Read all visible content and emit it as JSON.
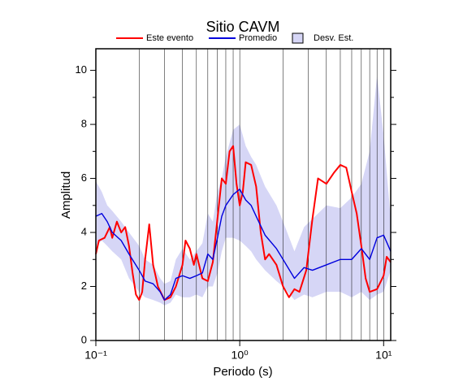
{
  "chart_data": {
    "type": "line",
    "title": "Sitio CAVM",
    "xlabel": "Periodo (s)",
    "ylabel": "Amplitud",
    "xscale": "log",
    "xlim": [
      0.1,
      11.2
    ],
    "ylim": [
      0,
      10.8
    ],
    "xticks": [
      {
        "value": 0.1,
        "label": "10⁻¹"
      },
      {
        "value": 1,
        "label": "10⁰"
      },
      {
        "value": 10,
        "label": "10¹"
      }
    ],
    "xgrid": [
      0.2,
      0.3,
      0.4,
      0.5,
      0.6,
      0.7,
      0.8,
      0.9,
      1,
      2,
      3,
      4,
      5,
      6,
      7,
      8,
      9,
      10
    ],
    "yticks": [
      0,
      2,
      4,
      6,
      8,
      10
    ],
    "yminorticks": [
      1,
      3,
      5,
      7,
      9
    ],
    "series": [
      {
        "name": "Este evento",
        "color": "#ff0000",
        "x": [
          0.1,
          0.105,
          0.115,
          0.125,
          0.13,
          0.14,
          0.15,
          0.16,
          0.17,
          0.18,
          0.19,
          0.2,
          0.21,
          0.22,
          0.235,
          0.25,
          0.27,
          0.3,
          0.33,
          0.36,
          0.4,
          0.42,
          0.45,
          0.48,
          0.5,
          0.55,
          0.6,
          0.65,
          0.7,
          0.75,
          0.8,
          0.85,
          0.9,
          0.95,
          1.0,
          1.05,
          1.1,
          1.2,
          1.3,
          1.4,
          1.5,
          1.6,
          1.8,
          2.0,
          2.2,
          2.4,
          2.6,
          2.9,
          3.2,
          3.5,
          4.0,
          4.5,
          5.0,
          5.5,
          6,
          6.5,
          7,
          7.5,
          8,
          9,
          10,
          10.5,
          11.2
        ],
        "values": [
          3.2,
          3.7,
          3.8,
          4.2,
          3.8,
          4.4,
          4.0,
          4.2,
          3.5,
          2.5,
          1.7,
          1.5,
          1.8,
          3.0,
          4.3,
          2.8,
          2.0,
          1.5,
          1.6,
          2.0,
          2.8,
          3.7,
          3.4,
          2.8,
          3.2,
          2.3,
          2.2,
          2.9,
          4.5,
          6.0,
          5.8,
          7.0,
          7.2,
          5.8,
          5.0,
          5.5,
          6.6,
          6.5,
          5.7,
          4.0,
          3.0,
          3.2,
          2.8,
          2.0,
          1.6,
          1.9,
          1.8,
          2.6,
          4.5,
          6.0,
          5.8,
          6.2,
          6.5,
          6.4,
          5.5,
          4.7,
          3.5,
          2.3,
          1.8,
          1.9,
          2.4,
          3.1,
          2.9
        ]
      },
      {
        "name": "Promedio",
        "color": "#0000dd",
        "x": [
          0.1,
          0.11,
          0.12,
          0.13,
          0.15,
          0.17,
          0.2,
          0.22,
          0.25,
          0.28,
          0.3,
          0.33,
          0.36,
          0.4,
          0.45,
          0.5,
          0.55,
          0.6,
          0.65,
          0.7,
          0.75,
          0.8,
          0.9,
          1.0,
          1.1,
          1.2,
          1.3,
          1.5,
          1.8,
          2.0,
          2.4,
          2.8,
          3.2,
          4,
          5,
          6,
          7,
          8,
          9,
          10,
          11.2
        ],
        "values": [
          4.6,
          4.7,
          4.4,
          4.0,
          3.7,
          3.2,
          2.6,
          2.2,
          2.1,
          1.8,
          1.5,
          1.7,
          2.3,
          2.4,
          2.3,
          2.4,
          2.5,
          3.2,
          3.0,
          3.8,
          4.6,
          5.0,
          5.4,
          5.6,
          5.2,
          5.0,
          4.6,
          3.9,
          3.4,
          3.0,
          2.3,
          2.7,
          2.6,
          2.8,
          3.0,
          3.0,
          3.4,
          3.0,
          3.8,
          3.9,
          3.3
        ]
      }
    ],
    "band": {
      "name": "Desv. Est.",
      "color": "#d6d6f6",
      "edge": "#000000",
      "x": [
        0.1,
        0.11,
        0.12,
        0.13,
        0.15,
        0.17,
        0.2,
        0.22,
        0.25,
        0.28,
        0.3,
        0.33,
        0.36,
        0.4,
        0.45,
        0.5,
        0.55,
        0.6,
        0.65,
        0.7,
        0.75,
        0.8,
        0.9,
        1.0,
        1.1,
        1.2,
        1.3,
        1.5,
        1.8,
        2.0,
        2.4,
        2.8,
        3.2,
        4,
        5,
        6,
        7,
        8,
        9,
        10,
        11.2
      ],
      "upper": [
        5.9,
        5.5,
        5.0,
        4.8,
        4.4,
        4.0,
        3.5,
        3.0,
        2.8,
        2.3,
        2.1,
        2.2,
        3.0,
        3.4,
        3.0,
        3.3,
        3.6,
        4.7,
        4.4,
        5.5,
        6.0,
        6.8,
        7.8,
        8.0,
        7.2,
        6.8,
        6.5,
        5.7,
        5.0,
        4.4,
        3.3,
        4.2,
        4.5,
        5.0,
        4.9,
        5.3,
        5.8,
        7.0,
        9.8,
        7.6,
        4.5
      ],
      "lower": [
        3.5,
        3.7,
        3.5,
        3.3,
        3.0,
        2.3,
        1.8,
        1.6,
        1.5,
        1.4,
        1.3,
        1.4,
        1.7,
        1.6,
        1.6,
        1.7,
        1.6,
        2.0,
        2.0,
        2.5,
        3.3,
        3.8,
        3.8,
        3.7,
        3.5,
        3.3,
        3.0,
        2.6,
        2.2,
        2.0,
        1.5,
        1.7,
        1.6,
        1.8,
        1.8,
        1.6,
        1.8,
        1.5,
        1.7,
        1.8,
        2.6
      ]
    }
  }
}
